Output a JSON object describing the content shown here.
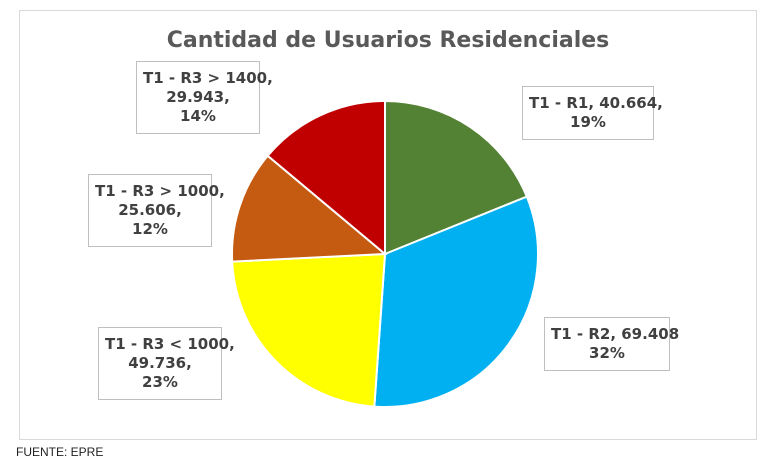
{
  "chart_data": {
    "type": "pie",
    "title": "Cantidad de Usuarios Residenciales",
    "slices": [
      {
        "name": "T1 - R1",
        "value": 40664,
        "value_label": "40.664",
        "percent_label": "19%",
        "color": "#548235",
        "label_lines": [
          "T1 - R1, 40.664,",
          "19%"
        ]
      },
      {
        "name": "T1 - R2",
        "value": 69408,
        "value_label": "69.408",
        "percent_label": "32%",
        "color": "#00b0f0",
        "label_lines": [
          "T1 - R2, 69.408",
          "32%"
        ]
      },
      {
        "name": "T1 - R3 < 1000",
        "value": 49736,
        "value_label": "49.736",
        "percent_label": "23%",
        "color": "#ffff00",
        "label_lines": [
          "T1 - R3 < 1000,",
          "49.736,",
          "23%"
        ]
      },
      {
        "name": "T1 - R3 > 1000",
        "value": 25606,
        "value_label": "25.606",
        "percent_label": "12%",
        "color": "#c55a11",
        "label_lines": [
          "T1 - R3 > 1000,",
          "25.606,",
          "12%"
        ]
      },
      {
        "name": "T1 - R3 > 1400",
        "value": 29943,
        "value_label": "29.943",
        "percent_label": "14%",
        "color": "#c00000",
        "label_lines": [
          "T1 - R3 > 1400,",
          "29.943,",
          "14%"
        ]
      }
    ]
  },
  "source_note": "FUENTE: EPRE"
}
